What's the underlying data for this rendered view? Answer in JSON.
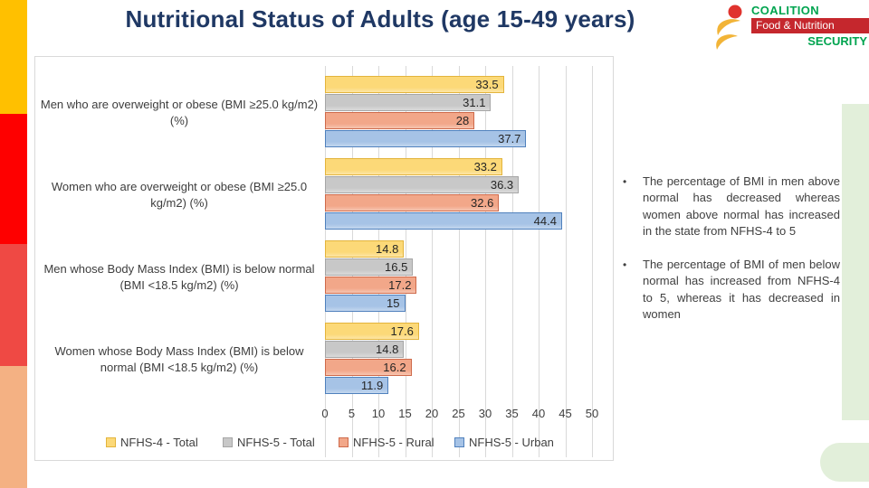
{
  "slide": {
    "title": "Nutritional Status of Adults (age 15-49 years)",
    "title_color": "#1F3864"
  },
  "logo": {
    "coalition": "COALITION",
    "food_nutrition": "Food & Nutrition",
    "security": "SECURITY",
    "green": "#00A44F",
    "red_bar": "#C5272D",
    "dot_red": "#E0332E",
    "swoosh_yellow": "#F2B437"
  },
  "decorations": {
    "left_strip_colors": [
      "#FFC000",
      "#FE0000",
      "#EF4944",
      "#F4B183"
    ],
    "left_strip_heights": [
      126,
      144,
      135,
      135
    ],
    "right_strip_color": "#E2EFDA"
  },
  "bullets": [
    "The percentage of BMI in men above normal has decreased whereas women above normal has increased in the state from NFHS-4 to 5",
    "The percentage of BMI of men below normal has increased from NFHS-4 to 5, whereas it has decreased in women"
  ],
  "chart_data": {
    "type": "bar",
    "orientation": "horizontal",
    "title": "",
    "xlabel": "",
    "ylabel": "",
    "xlim": [
      0,
      50
    ],
    "xticks": [
      0,
      5,
      10,
      15,
      20,
      25,
      30,
      35,
      40,
      45,
      50
    ],
    "grid": true,
    "legend_position": "bottom",
    "value_label_position": "inside-end",
    "categories": [
      "Men who are overweight or obese (BMI ≥25.0 kg/m2) (%)",
      "Women who are overweight or obese (BMI ≥25.0 kg/m2) (%)",
      "Men whose Body Mass Index (BMI) is below normal (BMI <18.5 kg/m2) (%)",
      "Women whose Body Mass Index (BMI) is below normal (BMI <18.5 kg/m2) (%)"
    ],
    "series": [
      {
        "name": "NFHS-4 - Total",
        "fill": "#FCD978",
        "border": "#E3B43C",
        "values": [
          33.5,
          33.2,
          14.8,
          17.6
        ],
        "labels": [
          "33.5",
          "33.2",
          "14.8",
          "17.6"
        ]
      },
      {
        "name": "NFHS-5 - Total",
        "fill": "#C8C8C8",
        "border": "#A6A6A6",
        "values": [
          31.1,
          36.3,
          16.5,
          14.8
        ],
        "labels": [
          "31.1",
          "36.3",
          "16.5",
          "14.8"
        ]
      },
      {
        "name": "NFHS-5 - Rural",
        "fill": "#F2A789",
        "border": "#CE6A4B",
        "values": [
          28,
          32.6,
          17.2,
          16.2
        ],
        "labels": [
          "28",
          "32.6",
          "17.2",
          "16.2"
        ]
      },
      {
        "name": "NFHS-5 - Urban",
        "fill": "#A6C3E6",
        "border": "#5081BD",
        "values": [
          37.7,
          44.4,
          15,
          11.9
        ],
        "labels": [
          "37.7",
          "44.4",
          "15",
          "11.9"
        ]
      }
    ]
  }
}
